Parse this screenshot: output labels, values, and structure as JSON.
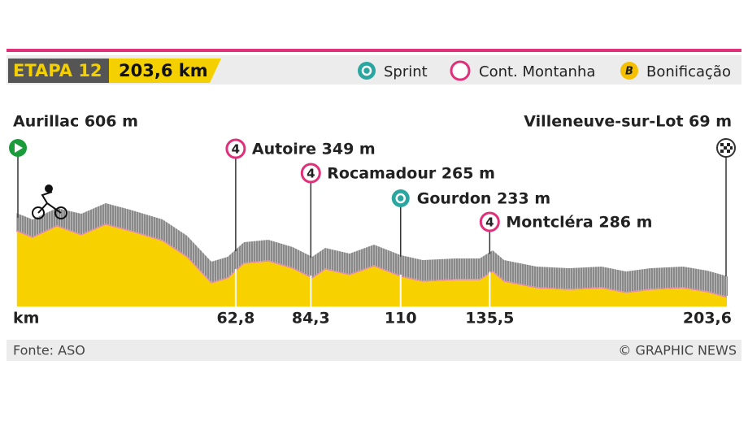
{
  "header": {
    "stage": "ETAPA 12",
    "distance": "203,6 km"
  },
  "legend": [
    {
      "label": "Sprint"
    },
    {
      "label": "Cont. Montanha"
    },
    {
      "label": "Bonificação",
      "icon": "B"
    }
  ],
  "start": "Aurillac 606 m",
  "finish": "Villeneuve-sur-Lot 69 m",
  "climbs": [
    {
      "label": "Autoire 349 m",
      "category": "4"
    },
    {
      "label": "Rocamadour 265 m",
      "category": "4"
    },
    {
      "label": "Gourdon 233 m"
    },
    {
      "label": "Montcléra 286 m",
      "category": "4"
    }
  ],
  "km_axis": {
    "label": "km",
    "ticks": [
      {
        "value": 62.8,
        "label": "62,8"
      },
      {
        "value": 84.3,
        "label": "84,3"
      },
      110,
      {
        "value": 135.5,
        "label": "135,5"
      },
      {
        "value": 203.6,
        "label": "203,6"
      }
    ]
  },
  "footer": {
    "source": "Fonte: ASO",
    "credit": "© GRAPHIC NEWS"
  }
}
